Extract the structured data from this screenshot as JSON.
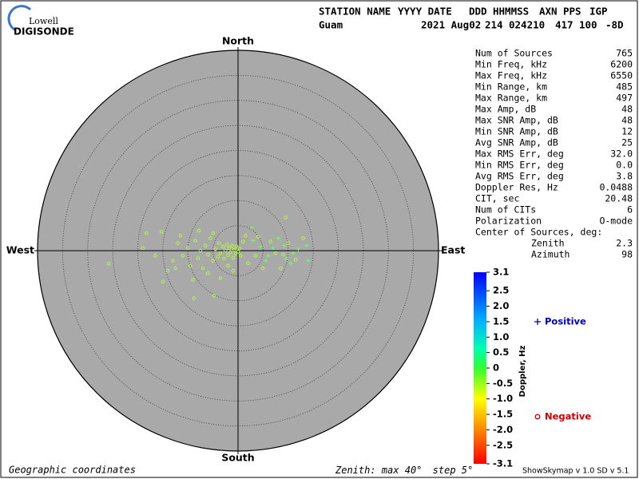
{
  "logo": {
    "top": "Lowell",
    "bottom": "DIGISONDE"
  },
  "header": {
    "fields": [
      "STATION NAME",
      "YYYY DATE",
      "DDD",
      "HHMMSS",
      "AXN",
      "PPS",
      "IGP"
    ],
    "values": [
      "Guam",
      "2021 Aug02",
      "214",
      "024210",
      "417",
      "100",
      "-8D"
    ]
  },
  "stats": {
    "rows": [
      [
        "Num of Sources",
        "765"
      ],
      [
        "Min Freq, kHz",
        "6200"
      ],
      [
        "Max Freq, kHz",
        "6550"
      ],
      [
        "Min Range, km",
        "485"
      ],
      [
        "Max Range, km",
        "497"
      ],
      [
        "Max Amp, dB",
        "48"
      ],
      [
        "Max SNR Amp, dB",
        "48"
      ],
      [
        "Min SNR Amp, dB",
        "12"
      ],
      [
        "Avg SNR Amp, dB",
        "25"
      ],
      [
        "Max RMS Err, deg",
        "32.0"
      ],
      [
        "Min RMS Err, deg",
        "0.0"
      ],
      [
        "Avg RMS Err, deg",
        "3.8"
      ],
      [
        "Doppler Res, Hz",
        "0.0488"
      ],
      [
        "CIT, sec",
        "20.48"
      ],
      [
        "Num of CITs",
        "6"
      ],
      [
        "Polarization",
        "O-mode"
      ]
    ],
    "center_title": "Center of Sources, deg:",
    "center_rows": [
      [
        "Zenith",
        "2.3"
      ],
      [
        "Azimuth",
        "98"
      ]
    ]
  },
  "footer": {
    "coordinates": "Geographic coordinates",
    "zenith_label": "Zenith: max",
    "step_label": "step",
    "unit": "°",
    "version": "ShowSkymap v 1.0  SD v 5.1"
  },
  "chart_data": {
    "type": "skymap",
    "compass": {
      "north": "North",
      "south": "South",
      "east": "East",
      "west": "West"
    },
    "zenith_max": 40,
    "zenith_step": 5,
    "series": [
      {
        "name": "Positive",
        "color": "#6cff5c",
        "legend_color": "#0000cc",
        "marker": "plus",
        "x": [
          2.8,
          9.2,
          13.7,
          14.0,
          9.6,
          7.0,
          5.5,
          8.0,
          11.0,
          3.0,
          6.0,
          10.5,
          4.5,
          12.0
        ],
        "y": [
          4.6,
          1.0,
          1.0,
          -2.0,
          -1.6,
          0.5,
          -2.0,
          2.5,
          -0.5,
          2.0,
          -1.0,
          -2.5,
          0.8,
          0.3
        ]
      },
      {
        "name": "Negative",
        "color": "#b4ff3c",
        "legend_color": "#cc0000",
        "marker": "circle",
        "x": [
          -25.8,
          -19.0,
          -18.3,
          -15.3,
          -14.0,
          -15.0,
          -13.0,
          -12.0,
          -11.0,
          -10.0,
          -9.5,
          -9.0,
          -8.5,
          -8.0,
          -7.5,
          -7.0,
          -6.5,
          -6.0,
          -5.5,
          -5.0,
          -4.5,
          -4.0,
          -3.8,
          -3.5,
          -3.0,
          -2.8,
          -2.5,
          -2.2,
          -2.0,
          -1.8,
          -1.5,
          -1.2,
          -1.0,
          -0.8,
          -0.5,
          -0.3,
          0.0,
          0.3,
          0.5,
          -4.8,
          -8.8,
          -6.0,
          -2.0,
          -12.5,
          -16.5,
          -11.5,
          -7.8,
          -5.0,
          1.5,
          2.0,
          4.0,
          5.0,
          7.5,
          3.5,
          6.5,
          9.0,
          10.0,
          11.5,
          8.5,
          13.0,
          9.5,
          -3.5,
          -1.0,
          1.0
        ],
        "y": [
          -2.6,
          0.5,
          3.5,
          3.8,
          -4.0,
          -6.2,
          -2.0,
          1.5,
          -1.0,
          0.5,
          -3.0,
          -5.8,
          2.0,
          -1.5,
          0.0,
          -3.5,
          1.0,
          -0.8,
          2.5,
          -2.0,
          0.3,
          -1.2,
          1.5,
          -0.5,
          0.8,
          -1.6,
          0.0,
          1.2,
          -0.9,
          0.5,
          -0.3,
          1.0,
          -1.4,
          0.2,
          -0.6,
          0.9,
          -0.2,
          0.4,
          -1.0,
          -9.0,
          -9.5,
          -4.5,
          -3.0,
          -3.5,
          -1.0,
          3.0,
          4.0,
          3.5,
          3.0,
          -2.5,
          2.8,
          -3.5,
          -0.5,
          -1.0,
          1.8,
          -0.8,
          1.5,
          -1.8,
          -3.5,
          2.5,
          6.6,
          -5.5,
          -4.0,
          1.8
        ]
      }
    ],
    "colorbar": {
      "label": "Doppler, Hz",
      "ylim": [
        -3.1,
        3.1
      ],
      "yticks": [
        3.1,
        2.5,
        {
          "value": 2,
          "label": "2.0"
        },
        1.5,
        {
          "value": 1,
          "label": "1.0"
        },
        0.5,
        0,
        -0.5,
        {
          "value": -1,
          "label": "-1.0"
        },
        -1.5,
        {
          "value": -2,
          "label": "-2.0"
        },
        -2.5,
        -3.1
      ]
    }
  }
}
